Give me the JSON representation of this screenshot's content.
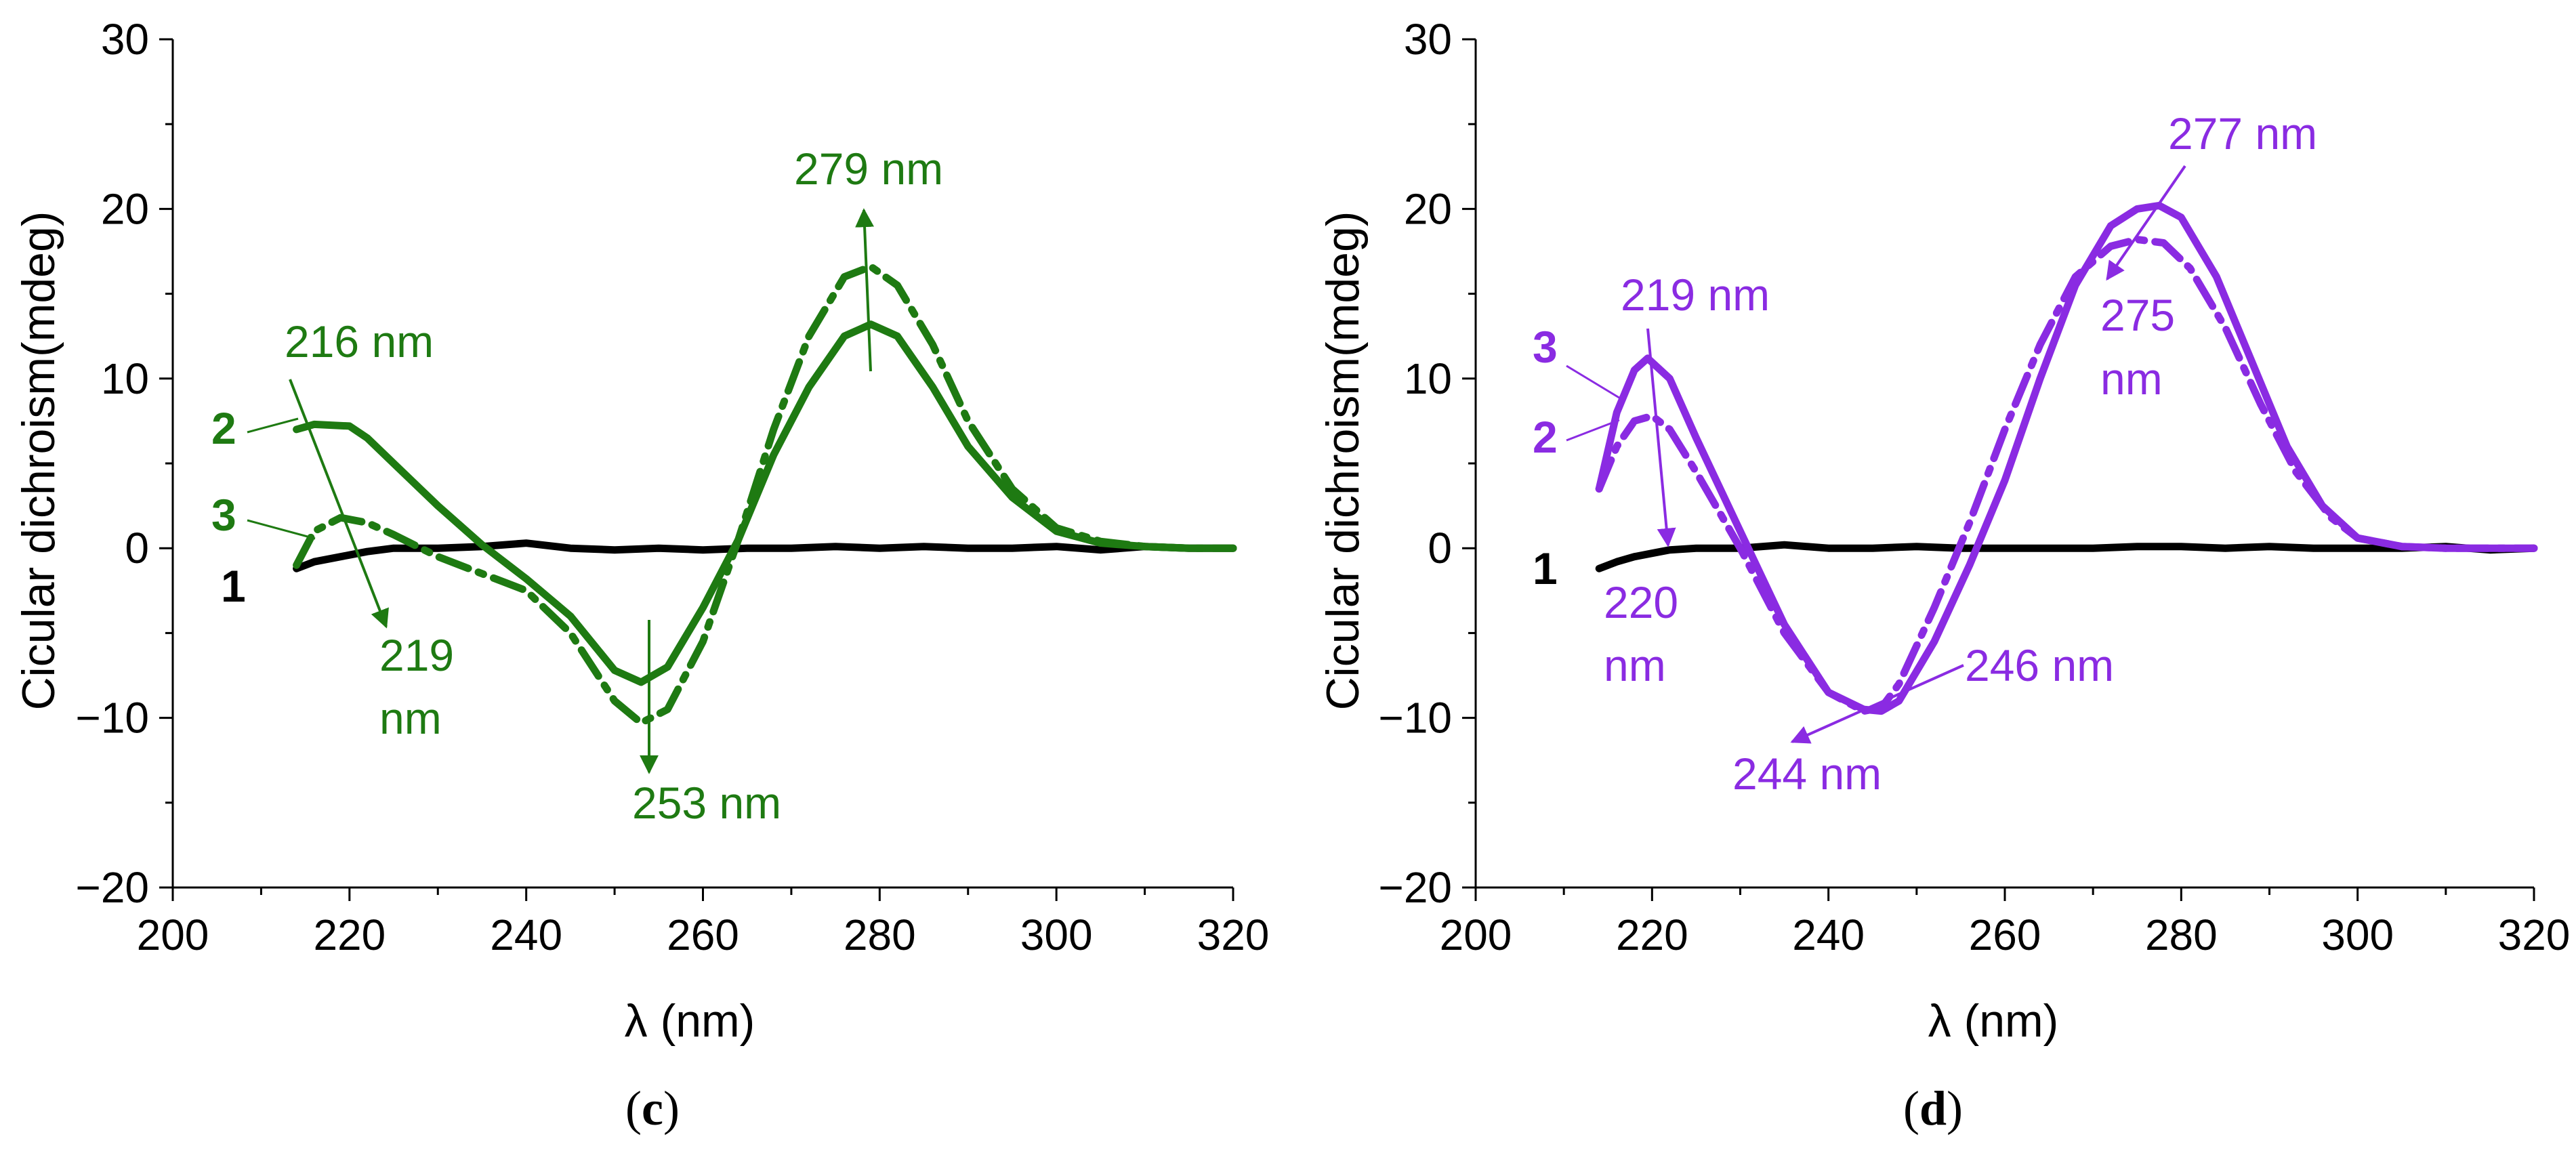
{
  "chart_data": [
    {
      "type": "line",
      "panel_label": "c",
      "xlabel": "λ (nm)",
      "ylabel": "Cicular dichroism(mdeg)",
      "xlim": [
        200,
        320
      ],
      "ylim": [
        -20,
        30
      ],
      "xticks": [
        200,
        220,
        240,
        260,
        280,
        300,
        320
      ],
      "yticks": [
        -20,
        -10,
        0,
        10,
        20,
        30
      ],
      "ytick_labels": [
        "−20",
        "−10",
        "0",
        "10",
        "20",
        "30"
      ],
      "accent_color": "#1e7a12",
      "series": [
        {
          "name": "1",
          "color": "#000000",
          "style": "solid",
          "x": [
            214,
            216,
            218,
            220,
            222,
            225,
            230,
            235,
            240,
            245,
            250,
            255,
            260,
            265,
            270,
            275,
            280,
            285,
            290,
            295,
            300,
            305,
            310,
            315,
            320
          ],
          "y": [
            -1.2,
            -0.8,
            -0.6,
            -0.4,
            -0.2,
            0.0,
            0.0,
            0.1,
            0.3,
            0.0,
            -0.1,
            0.0,
            -0.1,
            0.0,
            0.0,
            0.1,
            0.0,
            0.1,
            0.0,
            0.0,
            0.1,
            -0.1,
            0.1,
            0.0,
            0.0
          ]
        },
        {
          "name": "2",
          "color": "#1e7a12",
          "style": "solid",
          "x": [
            214,
            216,
            220,
            222,
            225,
            230,
            235,
            240,
            245,
            250,
            253,
            256,
            260,
            264,
            268,
            272,
            276,
            279,
            282,
            286,
            290,
            295,
            300,
            305,
            310,
            315,
            320
          ],
          "y": [
            7.0,
            7.3,
            7.2,
            6.5,
            5.0,
            2.5,
            0.2,
            -1.8,
            -4.0,
            -7.2,
            -7.9,
            -7.0,
            -3.5,
            0.5,
            5.5,
            9.5,
            12.5,
            13.2,
            12.5,
            9.5,
            6.0,
            3.0,
            1.0,
            0.3,
            0.1,
            0.0,
            0.0
          ]
        },
        {
          "name": "3",
          "color": "#1e7a12",
          "style": "dashdot",
          "x": [
            214,
            216,
            219,
            222,
            225,
            230,
            235,
            240,
            245,
            250,
            253,
            256,
            260,
            264,
            268,
            272,
            276,
            279,
            282,
            286,
            290,
            295,
            300,
            305,
            310,
            315,
            320
          ],
          "y": [
            -1.0,
            1.0,
            1.8,
            1.5,
            0.8,
            -0.5,
            -1.5,
            -2.5,
            -5.0,
            -9.0,
            -10.3,
            -9.5,
            -5.5,
            0.5,
            7.0,
            12.5,
            16.0,
            16.6,
            15.5,
            12.0,
            7.5,
            3.5,
            1.2,
            0.4,
            0.1,
            0.0,
            0.0
          ]
        }
      ],
      "annotations": [
        {
          "text": "216 nm",
          "color": "#1e7a12"
        },
        {
          "text": "219",
          "color": "#1e7a12"
        },
        {
          "text": "nm",
          "color": "#1e7a12"
        },
        {
          "text": "253 nm",
          "color": "#1e7a12"
        },
        {
          "text": "279 nm",
          "color": "#1e7a12"
        }
      ]
    },
    {
      "type": "line",
      "panel_label": "d",
      "xlabel": "λ (nm)",
      "ylabel": "Cicular dichroism(mdeg)",
      "xlim": [
        200,
        320
      ],
      "ylim": [
        -20,
        30
      ],
      "xticks": [
        200,
        220,
        240,
        260,
        280,
        300,
        320
      ],
      "yticks": [
        -20,
        -10,
        0,
        10,
        20,
        30
      ],
      "ytick_labels": [
        "−20",
        "−10",
        "0",
        "10",
        "20",
        "30"
      ],
      "accent_color": "#8a2be2",
      "series": [
        {
          "name": "1",
          "color": "#000000",
          "style": "solid",
          "x": [
            214,
            216,
            218,
            220,
            222,
            225,
            230,
            235,
            240,
            245,
            250,
            255,
            260,
            265,
            270,
            275,
            280,
            285,
            290,
            295,
            300,
            305,
            310,
            315,
            320
          ],
          "y": [
            -1.2,
            -0.8,
            -0.5,
            -0.3,
            -0.1,
            0.0,
            0.0,
            0.2,
            0.0,
            0.0,
            0.1,
            0.0,
            0.0,
            0.0,
            0.0,
            0.1,
            0.1,
            0.0,
            0.1,
            0.0,
            0.0,
            0.0,
            0.1,
            -0.1,
            0.0
          ]
        },
        {
          "name": "3",
          "color": "#8a2be2",
          "style": "solid",
          "x": [
            214,
            216,
            218,
            219.5,
            222,
            225,
            230,
            235,
            240,
            244,
            246,
            248,
            252,
            256,
            260,
            264,
            268,
            272,
            275,
            277.5,
            280,
            284,
            288,
            292,
            296,
            300,
            305,
            310,
            315,
            320
          ],
          "y": [
            3.5,
            8.0,
            10.5,
            11.2,
            10.0,
            6.5,
            1.0,
            -4.5,
            -8.5,
            -9.5,
            -9.6,
            -9.0,
            -5.5,
            -1.0,
            4.0,
            10.0,
            15.5,
            19.0,
            20.0,
            20.2,
            19.5,
            16.0,
            11.0,
            6.0,
            2.5,
            0.6,
            0.1,
            0.0,
            0.0,
            0.0
          ]
        },
        {
          "name": "2",
          "color": "#8a2be2",
          "style": "dashdot",
          "x": [
            214,
            216,
            218,
            220,
            222,
            225,
            230,
            235,
            240,
            244,
            246,
            248,
            252,
            256,
            260,
            264,
            268,
            272,
            275,
            278,
            281,
            285,
            289,
            293,
            297,
            300,
            305,
            310,
            315,
            320
          ],
          "y": [
            3.5,
            6.0,
            7.5,
            7.8,
            7.0,
            4.5,
            0.0,
            -5.0,
            -8.5,
            -9.6,
            -9.4,
            -8.0,
            -3.5,
            1.5,
            7.0,
            12.0,
            16.0,
            17.8,
            18.2,
            18.0,
            16.5,
            13.0,
            8.5,
            4.5,
            1.8,
            0.6,
            0.1,
            0.0,
            0.0,
            0.0
          ]
        }
      ],
      "annotations": [
        {
          "text": "219 nm",
          "color": "#8a2be2"
        },
        {
          "text": "220",
          "color": "#8a2be2"
        },
        {
          "text": "nm",
          "color": "#8a2be2"
        },
        {
          "text": "244 nm",
          "color": "#8a2be2"
        },
        {
          "text": "246 nm",
          "color": "#8a2be2"
        },
        {
          "text": "277 nm",
          "color": "#8a2be2"
        },
        {
          "text": "275",
          "color": "#8a2be2"
        },
        {
          "text": "nm",
          "color": "#8a2be2"
        }
      ]
    }
  ]
}
